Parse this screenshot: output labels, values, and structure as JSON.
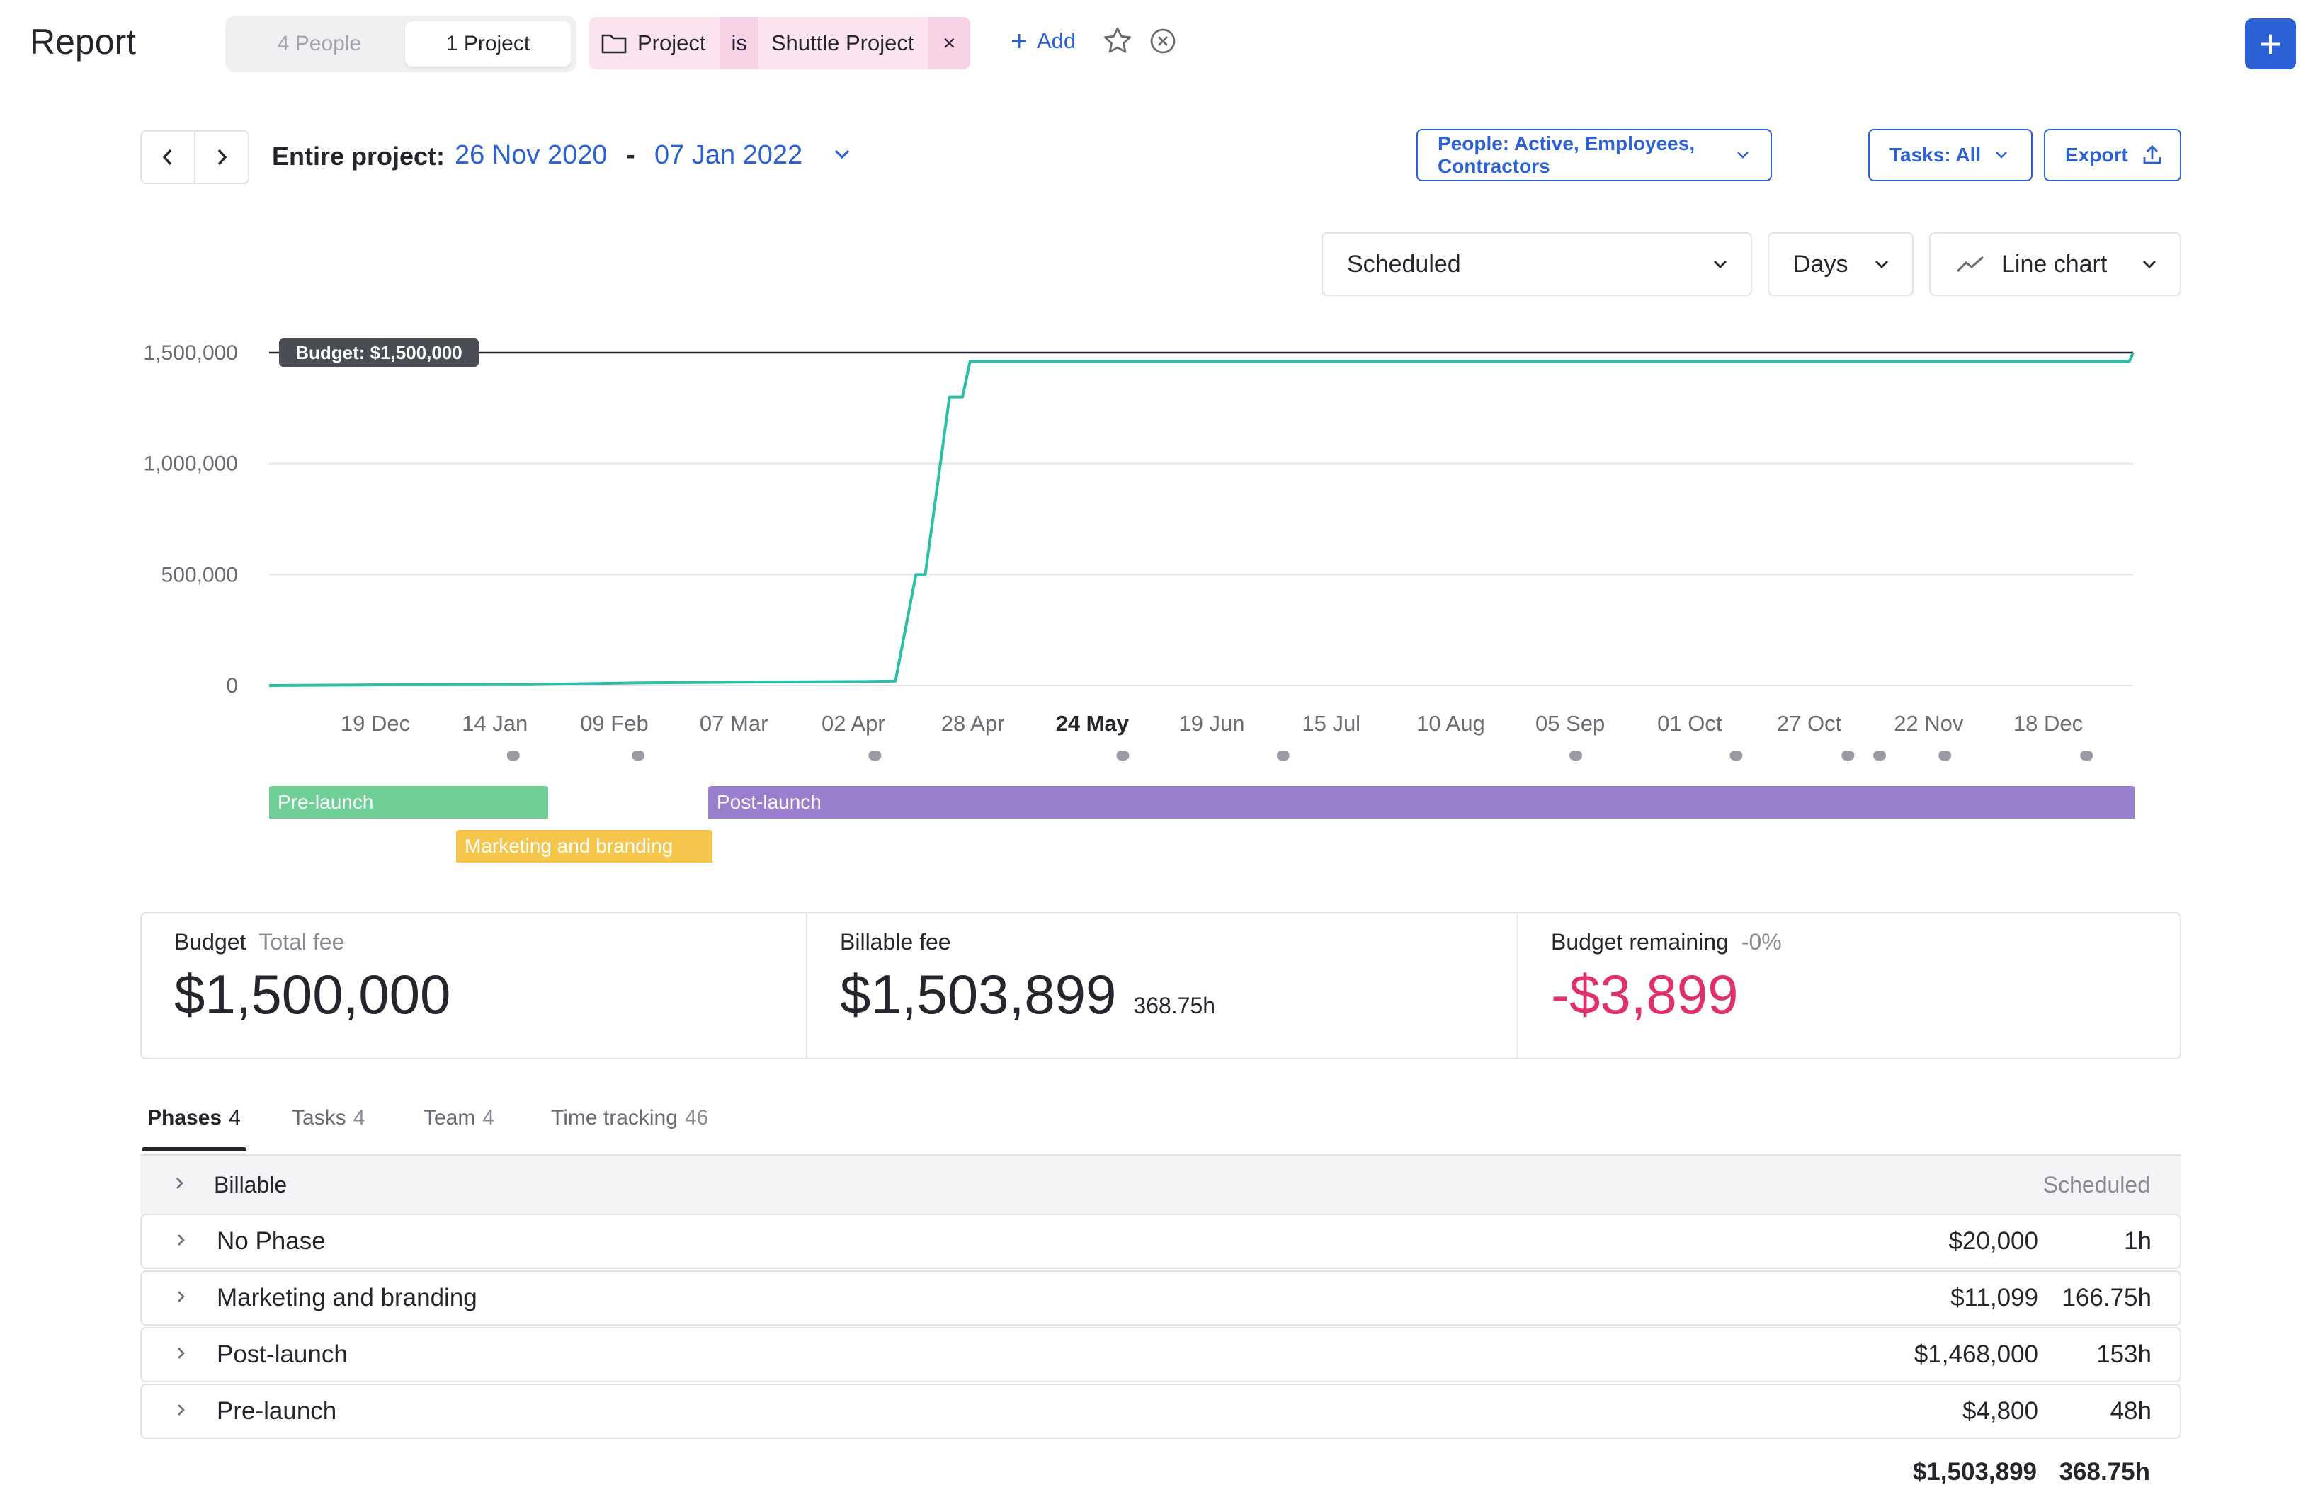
{
  "header": {
    "title": "Report",
    "view_people": "4 People",
    "view_project": "1 Project",
    "filter": {
      "field": "Project",
      "operator": "is",
      "value": "Shuttle Project",
      "remove": "×"
    },
    "add_label": "Add",
    "new_label": "+"
  },
  "range": {
    "label": "Entire project:",
    "start": "26 Nov 2020",
    "separator": "-",
    "end": "07 Jan 2022"
  },
  "toolbar": {
    "people_filter": "People: Active, Employees, Contractors",
    "tasks_filter": "Tasks: All",
    "export_label": "Export",
    "metric": "Scheduled",
    "interval": "Days",
    "chart_type": "Line chart"
  },
  "chart_data": {
    "type": "line",
    "yticks": [
      "1,500,000",
      "1,000,000",
      "500,000",
      "0"
    ],
    "ytick_values": [
      1500000,
      1000000,
      500000,
      0
    ],
    "ylim": [
      0,
      1500000
    ],
    "xticks": [
      "19 Dec",
      "14 Jan",
      "09 Feb",
      "07 Mar",
      "02 Apr",
      "28 Apr",
      "24 May",
      "19 Jun",
      "15 Jul",
      "10 Aug",
      "05 Sep",
      "01 Oct",
      "27 Oct",
      "22 Nov",
      "18 Dec"
    ],
    "highlight_tick": "24 May",
    "budget_label": "Budget: $1,500,000",
    "budget_value": 1500000,
    "line_color": "#2bbfa6",
    "series": [
      {
        "points": [
          [
            0,
            0
          ],
          [
            0.06,
            3000
          ],
          [
            0.14,
            4000
          ],
          [
            0.2,
            12000
          ],
          [
            0.25,
            15000
          ],
          [
            0.32,
            18000
          ],
          [
            0.336,
            20000
          ],
          [
            0.347,
            500000
          ],
          [
            0.352,
            500000
          ],
          [
            0.365,
            1300000
          ],
          [
            0.372,
            1300000
          ],
          [
            0.376,
            1460000
          ],
          [
            0.998,
            1460000
          ],
          [
            1.0,
            1500000
          ]
        ]
      }
    ],
    "markers": [
      0.131,
      0.198,
      0.325,
      0.458,
      0.544,
      0.701,
      0.787,
      0.847,
      0.864,
      0.899,
      0.975
    ]
  },
  "phases": [
    {
      "id": "prelaunch",
      "label": "Pre-launch"
    },
    {
      "id": "marketing",
      "label": "Marketing and branding"
    },
    {
      "id": "postlaunch",
      "label": "Post-launch"
    }
  ],
  "stats": {
    "budget": {
      "label": "Budget",
      "sub": "Total fee",
      "value": "$1,500,000"
    },
    "billable": {
      "label": "Billable fee",
      "value": "$1,503,899",
      "hours": "368.75h"
    },
    "remaining": {
      "label": "Budget remaining",
      "sub": "-0%",
      "value": "-$3,899",
      "color": "#e0306a"
    }
  },
  "tabs": [
    {
      "label": "Phases",
      "count": "4"
    },
    {
      "label": "Tasks",
      "count": "4"
    },
    {
      "label": "Team",
      "count": "4"
    },
    {
      "label": "Time tracking",
      "count": "46"
    }
  ],
  "table": {
    "group_label": "Billable",
    "group_column": "Scheduled",
    "rows": [
      {
        "name": "No Phase",
        "amount": "$20,000",
        "hours": "1h"
      },
      {
        "name": "Marketing and branding",
        "amount": "$11,099",
        "hours": "166.75h"
      },
      {
        "name": "Post-launch",
        "amount": "$1,468,000",
        "hours": "153h"
      },
      {
        "name": "Pre-launch",
        "amount": "$4,800",
        "hours": "48h"
      }
    ],
    "total_amount": "$1,503,899",
    "total_hours": "368.75h"
  }
}
